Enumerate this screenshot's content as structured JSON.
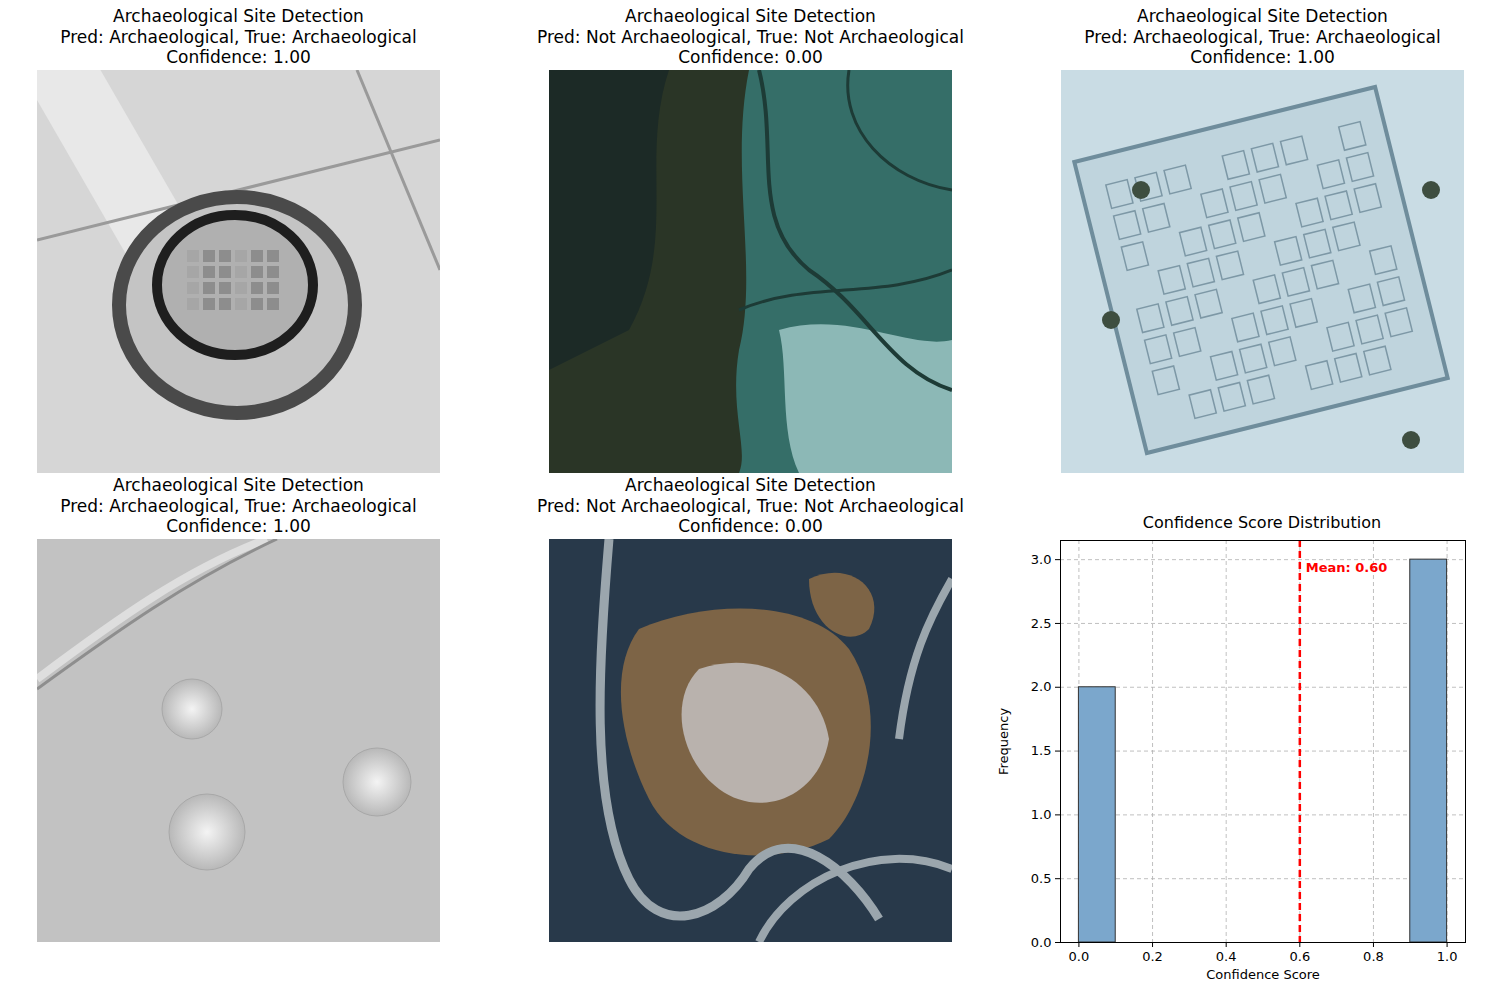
{
  "panels": [
    {
      "title": "Archaeological Site Detection",
      "prediction": "Pred: Archaeological, True: Archaeological",
      "confidence": "Confidence: 1.00"
    },
    {
      "title": "Archaeological Site Detection",
      "prediction": "Pred: Not Archaeological, True: Not Archaeological",
      "confidence": "Confidence: 0.00"
    },
    {
      "title": "Archaeological Site Detection",
      "prediction": "Pred: Archaeological, True: Archaeological",
      "confidence": "Confidence: 1.00"
    },
    {
      "title": "Archaeological Site Detection",
      "prediction": "Pred: Archaeological, True: Archaeological",
      "confidence": "Confidence: 1.00"
    },
    {
      "title": "Archaeological Site Detection",
      "prediction": "Pred: Not Archaeological, True: Not Archaeological",
      "confidence": "Confidence: 0.00"
    }
  ],
  "chart_data": {
    "type": "histogram",
    "title": "Confidence Score Distribution",
    "x_label": "Confidence Score",
    "y_label": "Frequency",
    "bins": [
      0,
      0.1,
      0.2,
      0.3,
      0.4,
      0.5,
      0.6,
      0.7,
      0.8,
      0.9,
      1.0
    ],
    "counts": [
      2,
      0,
      0,
      0,
      0,
      0,
      0,
      0,
      0,
      3
    ],
    "color": "#7ba7cc",
    "xlim": [
      -0.05,
      1.05
    ],
    "ylim": [
      0,
      3.15
    ],
    "xticks": [
      {
        "value": 0,
        "label": "0.0"
      },
      0.2,
      0.4,
      0.6,
      0.8,
      {
        "value": 1,
        "label": "1.0"
      }
    ],
    "yticks": [
      {
        "value": 0,
        "label": "0.0"
      },
      0.5,
      {
        "value": 1,
        "label": "1.0"
      },
      1.5,
      {
        "value": 2,
        "label": "2.0"
      },
      2.5,
      {
        "value": 3,
        "label": "3.0"
      }
    ],
    "grid": true,
    "mean": 0.6,
    "mean_label": "Mean: 0.60"
  }
}
